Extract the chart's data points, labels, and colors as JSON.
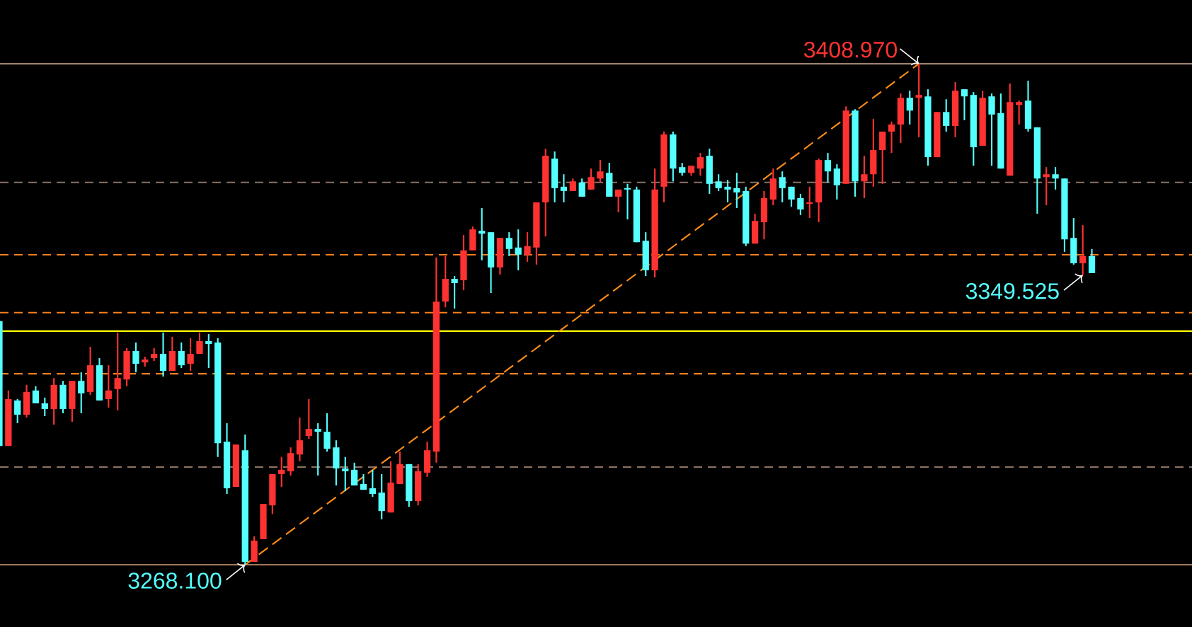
{
  "chart_data": {
    "type": "candlestick",
    "categories": [
      null,
      null,
      null,
      null,
      null,
      null,
      null,
      null,
      null,
      null,
      null,
      null,
      null,
      null,
      null,
      null,
      null,
      null,
      null,
      null,
      null,
      null,
      null,
      null,
      null,
      null,
      null,
      null,
      null,
      null,
      null,
      null,
      null,
      null,
      null,
      null,
      null,
      null,
      null,
      null,
      null,
      null,
      null,
      null,
      null,
      null,
      null,
      null,
      null,
      null,
      null,
      null,
      null,
      null,
      null,
      null,
      null,
      null,
      null,
      null,
      null,
      null,
      null,
      null,
      null,
      null,
      null,
      null,
      null,
      null,
      null,
      null,
      null,
      null,
      null,
      null,
      null,
      null,
      null,
      null,
      null,
      null,
      null,
      null,
      null,
      null,
      null,
      null,
      null,
      null,
      null,
      null,
      null,
      null,
      null,
      null,
      null,
      null,
      null,
      null,
      null,
      null,
      null,
      null,
      null,
      null,
      null,
      null,
      null,
      null,
      null,
      null,
      null,
      null,
      null,
      null,
      null,
      null,
      null,
      null,
      null
    ],
    "ohlc": [
      [
        3336.6,
        3336.9,
        3301.1,
        3301.5
      ],
      [
        3301.5,
        3317.1,
        3301.5,
        3314.7
      ],
      [
        3314.3,
        3314.7,
        3307.9,
        3310.3
      ],
      [
        3310.3,
        3318.7,
        3309.5,
        3316.7
      ],
      [
        3317.1,
        3318.3,
        3313.5,
        3313.5
      ],
      [
        3313.5,
        3315.1,
        3309.9,
        3311.9
      ],
      [
        3311.9,
        3320.6,
        3307.5,
        3318.7
      ],
      [
        3318.7,
        3319.8,
        3310.7,
        3311.9
      ],
      [
        3311.9,
        3319.8,
        3308.3,
        3319.8
      ],
      [
        3319.8,
        3322.2,
        3310.7,
        3316.3
      ],
      [
        3316.7,
        3329.4,
        3315.9,
        3324.2
      ],
      [
        3324.2,
        3326.2,
        3314.3,
        3314.3
      ],
      [
        3314.7,
        3324.2,
        3312.3,
        3317.1
      ],
      [
        3317.5,
        3333.4,
        3311.5,
        3320.6
      ],
      [
        3320.2,
        3329.0,
        3318.3,
        3328.2
      ],
      [
        3328.2,
        3330.6,
        3322.2,
        3324.6
      ],
      [
        3325.0,
        3326.6,
        3323.8,
        3325.8
      ],
      [
        3326.2,
        3329.0,
        3325.4,
        3327.4
      ],
      [
        3327.4,
        3333.4,
        3321.0,
        3322.6
      ],
      [
        3322.6,
        3332.2,
        3322.6,
        3328.2
      ],
      [
        3328.2,
        3330.6,
        3323.4,
        3324.2
      ],
      [
        3324.6,
        3331.8,
        3322.6,
        3327.4
      ],
      [
        3327.4,
        3333.4,
        3327.4,
        3331.0
      ],
      [
        3331.0,
        3333.0,
        3323.4,
        3330.2
      ],
      [
        3330.6,
        3331.8,
        3298.4,
        3302.3
      ],
      [
        3302.7,
        3307.9,
        3288.0,
        3289.6
      ],
      [
        3290.0,
        3301.9,
        3290.0,
        3301.9
      ],
      [
        3300.3,
        3304.7,
        3268.1,
        3268.9
      ],
      [
        3268.9,
        3276.1,
        3268.9,
        3274.9
      ],
      [
        3275.3,
        3285.2,
        3275.3,
        3285.2
      ],
      [
        3284.8,
        3293.6,
        3282.4,
        3293.6
      ],
      [
        3293.6,
        3298.4,
        3290.0,
        3294.8
      ],
      [
        3294.4,
        3301.1,
        3293.2,
        3299.5
      ],
      [
        3299.1,
        3309.5,
        3297.2,
        3303.1
      ],
      [
        3304.3,
        3314.7,
        3303.5,
        3306.3
      ],
      [
        3306.3,
        3307.9,
        3293.2,
        3305.5
      ],
      [
        3305.5,
        3310.7,
        3299.9,
        3300.7
      ],
      [
        3301.1,
        3303.1,
        3290.4,
        3295.2
      ],
      [
        3295.2,
        3298.4,
        3288.8,
        3294.4
      ],
      [
        3294.8,
        3296.8,
        3290.4,
        3290.4
      ],
      [
        3290.8,
        3293.6,
        3289.2,
        3289.2
      ],
      [
        3289.6,
        3294.8,
        3287.2,
        3288.0
      ],
      [
        3288.4,
        3293.6,
        3280.9,
        3283.2
      ],
      [
        3282.8,
        3297.2,
        3282.8,
        3291.2
      ],
      [
        3290.8,
        3299.9,
        3290.8,
        3296.4
      ],
      [
        3296.4,
        3296.4,
        3284.4,
        3286.0
      ],
      [
        3286.0,
        3296.4,
        3284.8,
        3294.4
      ],
      [
        3294.0,
        3302.7,
        3292.8,
        3300.3
      ],
      [
        3299.9,
        3354.5,
        3296.8,
        3342.1
      ],
      [
        3342.1,
        3354.9,
        3340.5,
        3348.5
      ],
      [
        3348.5,
        3349.3,
        3340.1,
        3347.3
      ],
      [
        3348.1,
        3360.8,
        3345.3,
        3356.5
      ],
      [
        3356.5,
        3363.2,
        3356.5,
        3362.4
      ],
      [
        3362.0,
        3368.4,
        3353.7,
        3361.2
      ],
      [
        3361.6,
        3361.6,
        3344.5,
        3351.7
      ],
      [
        3351.7,
        3360.0,
        3349.7,
        3360.0
      ],
      [
        3360.0,
        3361.6,
        3354.9,
        3356.9
      ],
      [
        3357.3,
        3362.4,
        3350.9,
        3355.3
      ],
      [
        3355.3,
        3361.6,
        3353.3,
        3357.7
      ],
      [
        3357.3,
        3370.0,
        3352.5,
        3370.0
      ],
      [
        3370.0,
        3385.1,
        3360.4,
        3383.1
      ],
      [
        3382.3,
        3384.3,
        3370.0,
        3374.0
      ],
      [
        3374.4,
        3377.9,
        3370.0,
        3373.2
      ],
      [
        3373.2,
        3376.7,
        3373.2,
        3375.9
      ],
      [
        3375.6,
        3376.7,
        3371.6,
        3371.6
      ],
      [
        3373.6,
        3379.5,
        3373.6,
        3377.1
      ],
      [
        3376.7,
        3381.9,
        3375.6,
        3378.7
      ],
      [
        3378.3,
        3381.1,
        3371.6,
        3371.6
      ],
      [
        3371.6,
        3373.6,
        3367.2,
        3373.6
      ],
      [
        3374.0,
        3375.2,
        3365.2,
        3373.6
      ],
      [
        3373.6,
        3374.4,
        3358.8,
        3358.8
      ],
      [
        3359.2,
        3361.6,
        3349.3,
        3350.9
      ],
      [
        3350.9,
        3379.5,
        3348.9,
        3373.6
      ],
      [
        3374.4,
        3389.9,
        3370.0,
        3389.1
      ],
      [
        3389.1,
        3389.9,
        3375.9,
        3379.5
      ],
      [
        3379.9,
        3381.1,
        3377.5,
        3378.3
      ],
      [
        3378.3,
        3380.3,
        3377.5,
        3380.3
      ],
      [
        3379.5,
        3383.9,
        3377.5,
        3382.7
      ],
      [
        3383.1,
        3385.1,
        3372.4,
        3375.2
      ],
      [
        3375.9,
        3377.9,
        3373.2,
        3374.0
      ],
      [
        3374.4,
        3376.3,
        3370.0,
        3373.6
      ],
      [
        3374.0,
        3378.3,
        3368.4,
        3372.8
      ],
      [
        3373.2,
        3374.4,
        3357.7,
        3358.4
      ],
      [
        3358.4,
        3366.8,
        3358.4,
        3364.8
      ],
      [
        3364.4,
        3373.2,
        3359.6,
        3371.2
      ],
      [
        3370.8,
        3379.5,
        3369.2,
        3376.7
      ],
      [
        3377.1,
        3378.7,
        3370.0,
        3374.0
      ],
      [
        3374.4,
        3374.4,
        3368.8,
        3370.8
      ],
      [
        3371.2,
        3372.4,
        3366.4,
        3368.0
      ],
      [
        3369.6,
        3374.4,
        3365.6,
        3370.0
      ],
      [
        3370.0,
        3382.3,
        3364.4,
        3381.9
      ],
      [
        3381.9,
        3383.9,
        3375.6,
        3378.7
      ],
      [
        3379.5,
        3380.7,
        3370.8,
        3374.8
      ],
      [
        3375.2,
        3397.0,
        3375.2,
        3395.8
      ],
      [
        3395.8,
        3396.2,
        3371.6,
        3375.9
      ],
      [
        3375.9,
        3383.1,
        3371.2,
        3377.9
      ],
      [
        3377.9,
        3393.5,
        3374.4,
        3384.7
      ],
      [
        3384.7,
        3389.9,
        3375.2,
        3389.9
      ],
      [
        3389.9,
        3392.7,
        3383.9,
        3391.9
      ],
      [
        3391.9,
        3400.6,
        3386.7,
        3399.4
      ],
      [
        3399.4,
        3401.4,
        3391.9,
        3395.8
      ],
      [
        3399.4,
        3408.97,
        3388.3,
        3400.2
      ],
      [
        3399.8,
        3401.8,
        3380.3,
        3382.7
      ],
      [
        3382.7,
        3395.4,
        3382.7,
        3395.4
      ],
      [
        3395.4,
        3399.0,
        3389.9,
        3391.5
      ],
      [
        3391.5,
        3403.8,
        3388.3,
        3401.4
      ],
      [
        3401.8,
        3401.8,
        3393.1,
        3399.8
      ],
      [
        3400.2,
        3401.0,
        3380.3,
        3385.5
      ],
      [
        3385.9,
        3401.4,
        3385.9,
        3399.4
      ],
      [
        3399.8,
        3400.6,
        3380.3,
        3394.7
      ],
      [
        3395.1,
        3400.6,
        3379.5,
        3379.5
      ],
      [
        3377.5,
        3403.4,
        3377.5,
        3398.2
      ],
      [
        3397.4,
        3398.6,
        3391.9,
        3398.2
      ],
      [
        3398.6,
        3404.2,
        3389.9,
        3390.7
      ],
      [
        3391.1,
        3391.1,
        3366.8,
        3376.7
      ],
      [
        3377.1,
        3379.9,
        3369.2,
        3377.9
      ],
      [
        3377.9,
        3379.9,
        3373.6,
        3376.7
      ],
      [
        3376.7,
        3376.7,
        3356.1,
        3359.6
      ],
      [
        3360.0,
        3365.6,
        3352.5,
        3352.9
      ],
      [
        3352.9,
        3363.6,
        3349.525,
        3354.9
      ],
      [
        3354.9,
        3356.9,
        3350.1,
        3350.1
      ]
    ],
    "colors": [
      "#55ffff",
      "#ff3232",
      "#55ffff",
      "#ff3232",
      "#55ffff",
      "#55ffff",
      "#ff3232",
      "#55ffff",
      "#ff3232",
      "#55ffff",
      "#ff3232",
      "#55ffff",
      "#ff3232",
      "#ff3232",
      "#ff3232",
      "#55ffff",
      "#ff3232",
      "#ff3232",
      "#55ffff",
      "#ff3232",
      "#55ffff",
      "#ff3232",
      "#ff3232",
      "#55ffff",
      "#55ffff",
      "#55ffff",
      "#ff3232",
      "#55ffff",
      "#ff3232",
      "#ff3232",
      "#ff3232",
      "#ff3232",
      "#ff3232",
      "#ff3232",
      "#ff3232",
      "#55ffff",
      "#55ffff",
      "#55ffff",
      "#55ffff",
      "#55ffff",
      "#55ffff",
      "#55ffff",
      "#55ffff",
      "#ff3232",
      "#ff3232",
      "#55ffff",
      "#ff3232",
      "#ff3232",
      "#ff3232",
      "#ff3232",
      "#55ffff",
      "#ff3232",
      "#ff3232",
      "#55ffff",
      "#55ffff",
      "#ff3232",
      "#55ffff",
      "#55ffff",
      "#ff3232",
      "#ff3232",
      "#ff3232",
      "#55ffff",
      "#55ffff",
      "#ff3232",
      "#55ffff",
      "#ff3232",
      "#ff3232",
      "#55ffff",
      "#ff3232",
      "#55ffff",
      "#55ffff",
      "#55ffff",
      "#ff3232",
      "#ff3232",
      "#55ffff",
      "#55ffff",
      "#ff3232",
      "#ff3232",
      "#55ffff",
      "#55ffff",
      "#55ffff",
      "#55ffff",
      "#55ffff",
      "#ff3232",
      "#ff3232",
      "#ff3232",
      "#55ffff",
      "#55ffff",
      "#55ffff",
      "#ff3232",
      "#ff3232",
      "#55ffff",
      "#55ffff",
      "#ff3232",
      "#55ffff",
      "#ff3232",
      "#ff3232",
      "#ff3232",
      "#ff3232",
      "#ff3232",
      "#55ffff",
      "#ff3232",
      "#55ffff",
      "#ff3232",
      "#55ffff",
      "#ff3232",
      "#55ffff",
      "#55ffff",
      "#ff3232",
      "#55ffff",
      "#55ffff",
      "#ff3232",
      "#ff3232",
      "#55ffff",
      "#55ffff",
      "#ff3232",
      "#55ffff",
      "#55ffff",
      "#55ffff",
      "#ff3232",
      "#55ffff"
    ],
    "series": [
      {
        "type": "line",
        "color": "#ff8c1a",
        "line_style": "dashed",
        "marker": "none",
        "values": [
          null,
          null,
          null,
          null,
          null,
          null,
          null,
          null,
          null,
          null,
          null,
          null,
          null,
          null,
          null,
          null,
          null,
          null,
          null,
          null,
          null,
          null,
          null,
          null,
          null,
          null,
          null,
          3268.1,
          null,
          null,
          null,
          null,
          null,
          null,
          null,
          null,
          null,
          null,
          null,
          null,
          null,
          null,
          null,
          null,
          null,
          null,
          null,
          null,
          null,
          null,
          null,
          null,
          null,
          null,
          null,
          null,
          null,
          null,
          null,
          null,
          null,
          null,
          null,
          null,
          null,
          null,
          null,
          null,
          null,
          null,
          null,
          null,
          null,
          null,
          null,
          null,
          null,
          null,
          null,
          null,
          null,
          null,
          null,
          null,
          null,
          null,
          null,
          null,
          null,
          null,
          null,
          null,
          null,
          null,
          null,
          null,
          null,
          null,
          null,
          null,
          null,
          3408.97,
          null,
          null,
          null,
          null,
          null,
          null,
          null,
          null,
          null,
          null,
          null,
          null,
          null,
          null,
          null,
          null,
          null,
          null,
          null
        ]
      }
    ],
    "ylim": [
      3250.6,
      3426.9
    ],
    "ref_lines": [
      {
        "axis": "y",
        "value": 3408.97,
        "color": "#9a8070",
        "line_style": "solid"
      },
      {
        "axis": "y",
        "value": 3268.1,
        "color": "#a0785a",
        "line_style": "solid"
      },
      {
        "axis": "y",
        "value": 3375.6,
        "color": "#8a7264",
        "line_style": "dashed"
      },
      {
        "axis": "y",
        "value": 3295.6,
        "color": "#8a7264",
        "line_style": "dashed"
      },
      {
        "axis": "y",
        "value": 3355.3,
        "color": "#ff7f1e",
        "line_style": "dashed"
      },
      {
        "axis": "y",
        "value": 3339.0,
        "color": "#ff7f1e",
        "line_style": "dashed"
      },
      {
        "axis": "y",
        "value": 3321.8,
        "color": "#ff7f1e",
        "line_style": "dashed"
      },
      {
        "axis": "y",
        "value": 3333.8,
        "color": "#ffff00",
        "line_style": "solid"
      }
    ],
    "annotations": [
      {
        "text": "3408.970",
        "y": 3408.97
      },
      {
        "text": "3268.100",
        "y": 3268.1
      },
      "3349.525"
    ]
  }
}
